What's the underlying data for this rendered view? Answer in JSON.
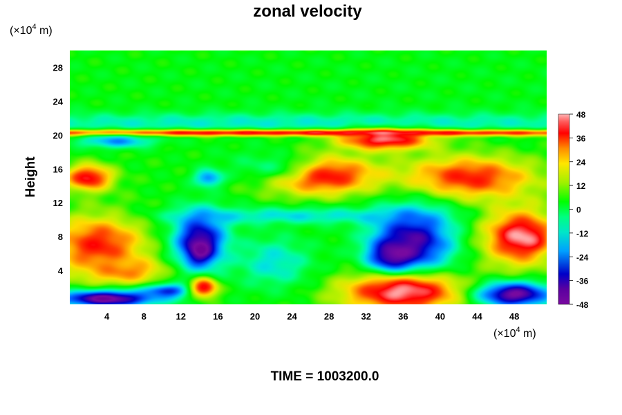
{
  "chart_data": {
    "type": "heatmap",
    "title": "zonal velocity",
    "ylabel": "Height",
    "xlabel": "",
    "y_unit": {
      "prefix": "(×10",
      "exp": "4",
      "suffix": " m)"
    },
    "x_unit": {
      "prefix": "(×10",
      "exp": "4",
      "suffix": " m)"
    },
    "xlim": [
      0,
      51.5
    ],
    "ylim": [
      0,
      30
    ],
    "x_ticks": [
      "4",
      "8",
      "12",
      "16",
      "20",
      "24",
      "28",
      "32",
      "36",
      "40",
      "44",
      "48"
    ],
    "y_ticks": [
      "4",
      "8",
      "12",
      "16",
      "20",
      "24",
      "28"
    ],
    "colorbar": {
      "range": [
        -48,
        48
      ],
      "ticks": [
        "48",
        "36",
        "24",
        "12",
        "0",
        "-12",
        "-24",
        "-36",
        "-48"
      ]
    },
    "background_value": 4,
    "features": [
      {
        "x": 50,
        "y": 26,
        "rx": 60,
        "ry": 6,
        "v": 2
      },
      {
        "x": 25,
        "y": 21.5,
        "rx": 60,
        "ry": 1.2,
        "v": -12
      },
      {
        "x": 25,
        "y": 20.3,
        "rx": 60,
        "ry": 0.4,
        "v": 40
      },
      {
        "x": 34,
        "y": 19.5,
        "rx": 5,
        "ry": 1.2,
        "v": 46
      },
      {
        "x": 5,
        "y": 19.3,
        "rx": 4,
        "ry": 0.8,
        "v": -22
      },
      {
        "x": 27,
        "y": 15.3,
        "rx": 6,
        "ry": 2.2,
        "v": 44
      },
      {
        "x": 43,
        "y": 15,
        "rx": 7,
        "ry": 2.5,
        "v": 38
      },
      {
        "x": 2,
        "y": 15,
        "rx": 2.5,
        "ry": 1.5,
        "v": 42
      },
      {
        "x": 15,
        "y": 15,
        "rx": 1.5,
        "ry": 1,
        "v": -28
      },
      {
        "x": 24,
        "y": 10.5,
        "rx": 14,
        "ry": 1,
        "v": -14
      },
      {
        "x": 14,
        "y": 7.5,
        "rx": 3,
        "ry": 3.5,
        "v": -42
      },
      {
        "x": 14,
        "y": 6.5,
        "rx": 1.3,
        "ry": 1.5,
        "v": -52
      },
      {
        "x": 37,
        "y": 7.5,
        "rx": 4.5,
        "ry": 4,
        "v": -42
      },
      {
        "x": 35,
        "y": 5.5,
        "rx": 2.5,
        "ry": 2,
        "v": -52
      },
      {
        "x": 3,
        "y": 7,
        "rx": 5,
        "ry": 3.5,
        "v": 38
      },
      {
        "x": 6,
        "y": 4,
        "rx": 4,
        "ry": 1.5,
        "v": 30
      },
      {
        "x": 48.5,
        "y": 8,
        "rx": 4,
        "ry": 3.5,
        "v": 40
      },
      {
        "x": 49,
        "y": 8,
        "rx": 2,
        "ry": 1.5,
        "v": 48
      },
      {
        "x": 4,
        "y": 0.7,
        "rx": 5.5,
        "ry": 1,
        "v": -50
      },
      {
        "x": 10.5,
        "y": 1.6,
        "rx": 2.5,
        "ry": 0.8,
        "v": -34
      },
      {
        "x": 36,
        "y": 1.5,
        "rx": 6.5,
        "ry": 2.3,
        "v": 48
      },
      {
        "x": 48,
        "y": 1.2,
        "rx": 4,
        "ry": 1.5,
        "v": -48
      },
      {
        "x": 14.5,
        "y": 2,
        "rx": 1.5,
        "ry": 1.2,
        "v": 42
      },
      {
        "x": 22,
        "y": 5,
        "rx": 4,
        "ry": 3,
        "v": -14
      },
      {
        "x": 21,
        "y": 16.5,
        "rx": 5,
        "ry": 2,
        "v": -4
      }
    ]
  }
}
